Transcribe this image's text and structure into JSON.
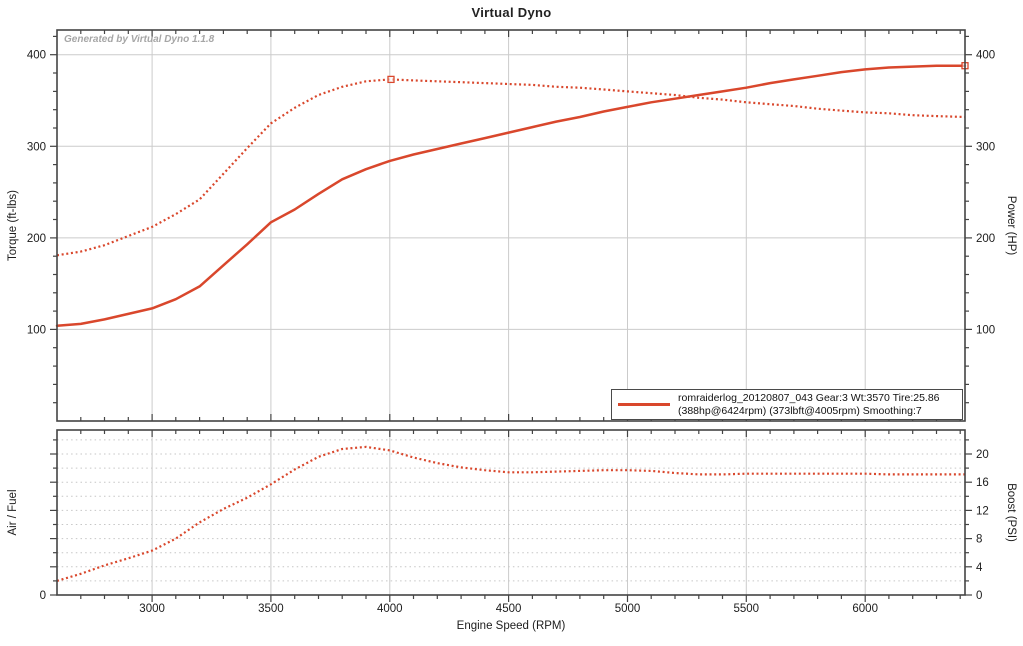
{
  "title": "Virtual Dyno",
  "watermark": "Generated by Virtual Dyno 1.1.8",
  "legend": {
    "line1": "romraiderlog_20120807_043 Gear:3 Wt:3570 Tire:25.86",
    "line2": "(388hp@6424rpm) (373lbft@4005rpm) Smoothing:7"
  },
  "colors": {
    "curve": "#d9472c",
    "grid": "#cbcbcb",
    "grid_dotted": "#c6c6c6",
    "axis": "#444444",
    "label": "#1c1c1c",
    "watermark": "#a6a6a6",
    "background": "#ffffff"
  },
  "x_axis": {
    "label": "Engine Speed (RPM)",
    "min": 2600,
    "max": 6420,
    "major_ticks": [
      3000,
      3500,
      4000,
      4500,
      5000,
      5500,
      6000
    ],
    "minor_step": 100
  },
  "chart_data": [
    {
      "type": "line",
      "name": "torque-power",
      "y_left_label": "Torque (ft-lbs)",
      "y_right_label": "Power (HP)",
      "y_range": [
        0,
        427
      ],
      "y_labeled_ticks": [
        100,
        200,
        300,
        400
      ],
      "y_left_labels": [
        100,
        200,
        300,
        400
      ],
      "y_right_labels": [
        100,
        200,
        300,
        400
      ],
      "y_minor_step": 20,
      "y_major_multiple": 100,
      "h_gridlines": [
        100,
        200,
        300,
        400
      ],
      "h_grid_style": "solid",
      "x": [
        2600,
        2700,
        2800,
        2900,
        3000,
        3100,
        3200,
        3300,
        3400,
        3500,
        3600,
        3700,
        3800,
        3900,
        4000,
        4100,
        4200,
        4300,
        4400,
        4500,
        4600,
        4700,
        4800,
        4900,
        5000,
        5100,
        5200,
        5300,
        5400,
        5500,
        5600,
        5700,
        5800,
        5900,
        6000,
        6100,
        6200,
        6300,
        6420
      ],
      "series": [
        {
          "name": "torque",
          "style": "dotted",
          "peak_label": "373lbft@4005rpm",
          "marker": {
            "rpm": 4005,
            "value": 373
          },
          "values": [
            181,
            185,
            192,
            202,
            212,
            226,
            242,
            270,
            298,
            325,
            342,
            356,
            365,
            371,
            373,
            372,
            371,
            370,
            369,
            368,
            367,
            365,
            364,
            362,
            360,
            358,
            356,
            353,
            351,
            348,
            346,
            344,
            341,
            339,
            337,
            336,
            334,
            333,
            332
          ]
        },
        {
          "name": "power",
          "style": "solid",
          "peak_label": "388hp@6424rpm",
          "marker": {
            "rpm": 6420,
            "value": 388
          },
          "values": [
            104,
            106,
            111,
            117,
            123,
            133,
            147,
            170,
            193,
            217,
            231,
            248,
            264,
            275,
            284,
            291,
            297,
            303,
            309,
            315,
            321,
            327,
            332,
            338,
            343,
            348,
            352,
            356,
            360,
            364,
            369,
            373,
            377,
            381,
            384,
            386,
            387,
            388,
            388
          ]
        }
      ]
    },
    {
      "type": "line",
      "name": "afr-boost",
      "y_left_label": "Air / Fuel",
      "y_right_label": "Boost (PSI)",
      "y_range": [
        0,
        23.4
      ],
      "y_labeled_ticks": [
        0,
        4,
        8,
        12,
        16,
        20
      ],
      "y_left_labels": [
        0
      ],
      "y_right_labels": [
        0,
        4,
        8,
        12,
        16,
        20
      ],
      "y_minor_step": 2,
      "y_major_multiple": 4,
      "h_gridlines": [
        2,
        4,
        6,
        8,
        10,
        12,
        14,
        16,
        18,
        20,
        22
      ],
      "h_grid_style": "dotted",
      "x": [
        2600,
        2700,
        2800,
        2900,
        3000,
        3100,
        3200,
        3300,
        3400,
        3500,
        3600,
        3700,
        3800,
        3900,
        4000,
        4100,
        4200,
        4300,
        4400,
        4500,
        4600,
        4700,
        4800,
        4900,
        5000,
        5100,
        5200,
        5300,
        5400,
        5500,
        5600,
        5700,
        5800,
        5900,
        6000,
        6100,
        6200,
        6300,
        6420
      ],
      "series": [
        {
          "name": "boost",
          "style": "dotted",
          "values": [
            2.0,
            3.0,
            4.2,
            5.2,
            6.3,
            8.0,
            10.3,
            12.2,
            13.8,
            15.7,
            17.8,
            19.6,
            20.7,
            21.0,
            20.5,
            19.5,
            18.7,
            18.1,
            17.7,
            17.4,
            17.4,
            17.5,
            17.6,
            17.7,
            17.7,
            17.6,
            17.3,
            17.1,
            17.1,
            17.2,
            17.2,
            17.2,
            17.2,
            17.2,
            17.2,
            17.1,
            17.1,
            17.1,
            17.1
          ]
        }
      ]
    }
  ]
}
